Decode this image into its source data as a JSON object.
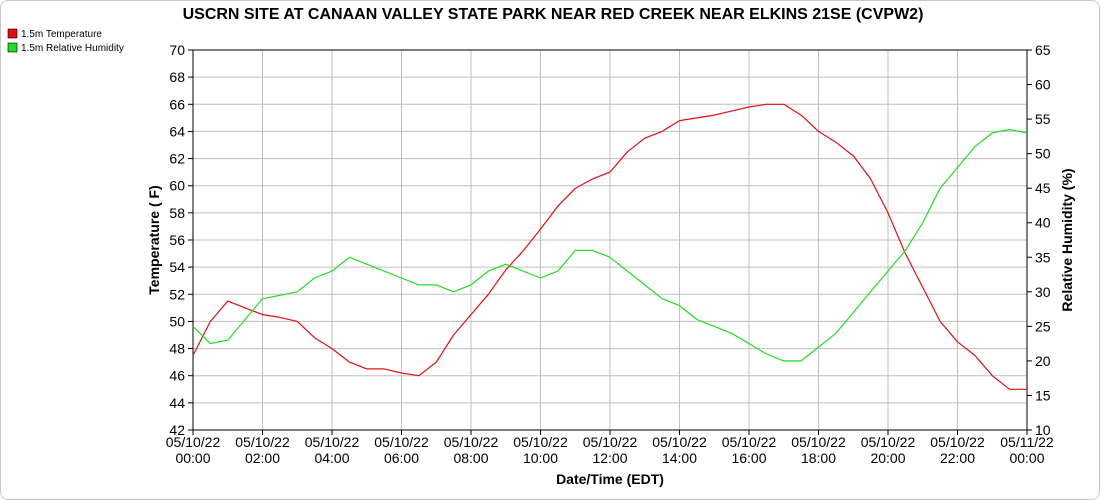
{
  "chart_data": {
    "type": "line",
    "title": "USCRN SITE AT CANAAN VALLEY STATE PARK NEAR RED CREEK NEAR ELKINS 21SE (CVPW2)",
    "xlabel": "Date/Time (EDT)",
    "ylabel_left": "Temperature ( F)",
    "ylabel_right": "Relative Humidity (%)",
    "ylim_left": [
      42,
      70
    ],
    "ylim_right": [
      10,
      65
    ],
    "yticks_left": [
      "42",
      "44",
      "46",
      "48",
      "50",
      "52",
      "54",
      "56",
      "58",
      "60",
      "62",
      "64",
      "66",
      "68",
      "70"
    ],
    "yticks_right": [
      "10",
      "15",
      "20",
      "25",
      "30",
      "35",
      "40",
      "45",
      "50",
      "55",
      "60",
      "65"
    ],
    "xticks": [
      {
        "date": "05/10/22",
        "time": "00:00"
      },
      {
        "date": "05/10/22",
        "time": "02:00"
      },
      {
        "date": "05/10/22",
        "time": "04:00"
      },
      {
        "date": "05/10/22",
        "time": "06:00"
      },
      {
        "date": "05/10/22",
        "time": "08:00"
      },
      {
        "date": "05/10/22",
        "time": "10:00"
      },
      {
        "date": "05/10/22",
        "time": "12:00"
      },
      {
        "date": "05/10/22",
        "time": "14:00"
      },
      {
        "date": "05/10/22",
        "time": "16:00"
      },
      {
        "date": "05/10/22",
        "time": "18:00"
      },
      {
        "date": "05/10/22",
        "time": "20:00"
      },
      {
        "date": "05/10/22",
        "time": "22:00"
      },
      {
        "date": "05/11/22",
        "time": "00:00"
      }
    ],
    "grid": true,
    "legend_position": "top-left",
    "series": [
      {
        "name": "1.5m Temperature",
        "axis": "left",
        "color": "#e01010",
        "x": [
          0,
          0.5,
          1,
          1.5,
          2,
          2.5,
          3,
          3.5,
          4,
          4.5,
          5,
          5.5,
          6,
          6.5,
          7,
          7.5,
          8,
          8.5,
          9,
          9.5,
          10,
          10.5,
          11,
          11.5,
          12,
          12.5,
          13,
          13.5,
          14,
          14.5,
          15,
          15.5,
          16,
          16.5,
          17,
          17.5,
          18,
          18.5,
          19,
          19.5,
          20,
          20.5,
          21,
          21.5,
          22,
          22.5,
          23,
          23.5,
          24
        ],
        "y": [
          47.5,
          50.0,
          51.5,
          51.0,
          50.5,
          50.3,
          50.0,
          48.8,
          48.0,
          47.0,
          46.5,
          46.5,
          46.2,
          46.0,
          47.0,
          49.0,
          50.5,
          52.0,
          53.8,
          55.2,
          56.8,
          58.5,
          59.8,
          60.5,
          61.0,
          62.5,
          63.5,
          64.0,
          64.8,
          65.0,
          65.2,
          65.5,
          65.8,
          66.0,
          66.0,
          65.2,
          64.0,
          63.2,
          62.2,
          60.5,
          58.0,
          55.0,
          52.5,
          50.0,
          48.5,
          47.5,
          46.0,
          45.0,
          45.0
        ]
      },
      {
        "name": "1.5m Relative Humidity",
        "axis": "right",
        "color": "#22dd22",
        "x": [
          0,
          0.5,
          1,
          1.5,
          2,
          2.5,
          3,
          3.5,
          4,
          4.5,
          5,
          5.5,
          6,
          6.5,
          7,
          7.5,
          8,
          8.5,
          9,
          9.5,
          10,
          10.5,
          11,
          11.5,
          12,
          12.5,
          13,
          13.5,
          14,
          14.5,
          15,
          15.5,
          16,
          16.5,
          17,
          17.5,
          18,
          18.5,
          19,
          19.5,
          20,
          20.5,
          21,
          21.5,
          22,
          22.5,
          23,
          23.5,
          24
        ],
        "y": [
          25.0,
          22.5,
          23.0,
          26.0,
          29.0,
          29.5,
          30.0,
          32.0,
          33.0,
          35.0,
          34.0,
          33.0,
          32.0,
          31.0,
          31.0,
          30.0,
          31.0,
          33.0,
          34.0,
          33.0,
          32.0,
          33.0,
          36.0,
          36.0,
          35.0,
          33.0,
          31.0,
          29.0,
          28.0,
          26.0,
          25.0,
          24.0,
          22.5,
          21.0,
          20.0,
          20.0,
          22.0,
          24.0,
          27.0,
          30.0,
          33.0,
          36.0,
          40.0,
          45.0,
          48.0,
          51.0,
          53.0,
          53.5,
          53.0
        ]
      }
    ]
  }
}
